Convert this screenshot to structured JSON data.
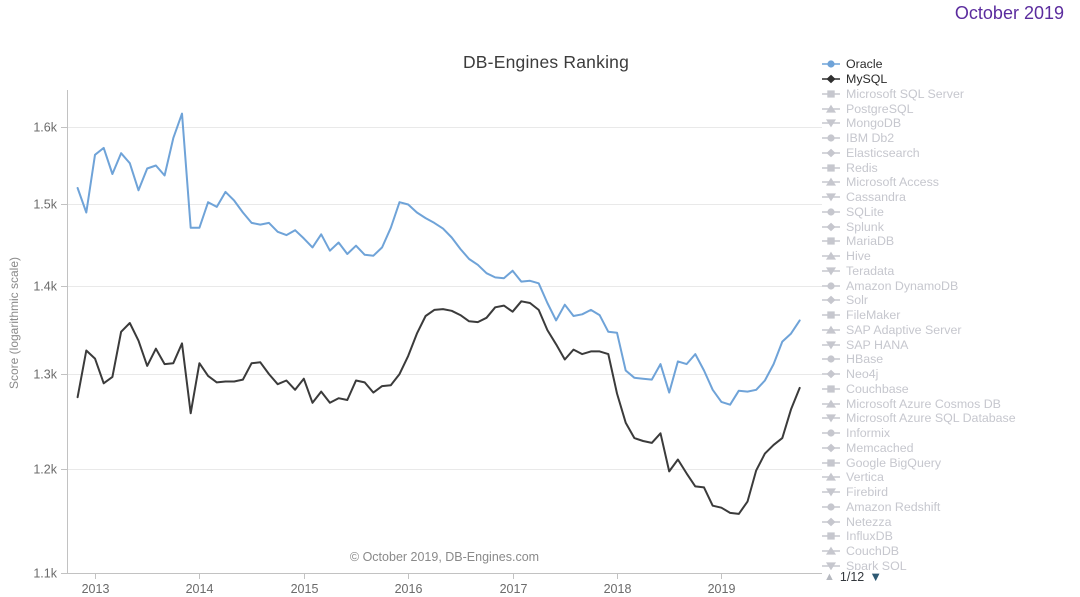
{
  "header": {
    "period_label": "October 2019"
  },
  "chart": {
    "copyright": "© October 2019, DB-Engines.com"
  },
  "chart_data": {
    "type": "line",
    "title": "DB-Engines Ranking",
    "ylabel": "Score (logarithmic scale)",
    "y_scale": "log",
    "ylim": [
      1100,
      1650
    ],
    "grid": "horizontal",
    "y_tick_labels": [
      "1.1k",
      "1.2k",
      "1.3k",
      "1.4k",
      "1.5k",
      "1.6k"
    ],
    "y_tick_values": [
      1100,
      1200,
      1300,
      1400,
      1500,
      1600
    ],
    "x_tick_labels": [
      "2013",
      "2014",
      "2015",
      "2016",
      "2017",
      "2018",
      "2019"
    ],
    "x_start": "2012-11",
    "x_end": "2019-10",
    "x_frequency": "monthly",
    "series": [
      {
        "name": "Oracle",
        "color": "#6fa3d8",
        "values": [
          1520,
          1489,
          1563,
          1572,
          1538,
          1565,
          1552,
          1517,
          1545,
          1549,
          1536,
          1585,
          1618,
          1470,
          1470,
          1502,
          1496,
          1515,
          1504,
          1489,
          1476,
          1474,
          1476,
          1465,
          1461,
          1467,
          1457,
          1446,
          1462,
          1442,
          1452,
          1438,
          1448,
          1437,
          1436,
          1446,
          1470,
          1502,
          1499,
          1489,
          1482,
          1476,
          1469,
          1458,
          1444,
          1432,
          1425,
          1415,
          1410,
          1409,
          1418,
          1405,
          1406,
          1403,
          1380,
          1360,
          1378,
          1365,
          1367,
          1372,
          1366,
          1347,
          1346,
          1304,
          1296,
          1295,
          1294,
          1311,
          1280,
          1314,
          1311,
          1322,
          1304,
          1283,
          1270,
          1267,
          1282,
          1281,
          1283,
          1293,
          1311,
          1336,
          1345,
          1360
        ]
      },
      {
        "name": "MySQL",
        "color": "#3b3b3b",
        "values": [
          1275,
          1326,
          1317,
          1290,
          1297,
          1347,
          1357,
          1337,
          1309,
          1328,
          1311,
          1312,
          1334,
          1258,
          1312,
          1298,
          1291,
          1292,
          1292,
          1294,
          1312,
          1313,
          1300,
          1289,
          1293,
          1283,
          1295,
          1269,
          1281,
          1269,
          1274,
          1272,
          1293,
          1291,
          1280,
          1287,
          1288,
          1300,
          1320,
          1345,
          1365,
          1372,
          1373,
          1371,
          1366,
          1359,
          1358,
          1363,
          1375,
          1377,
          1370,
          1382,
          1380,
          1372,
          1349,
          1333,
          1316,
          1327,
          1322,
          1325,
          1325,
          1322,
          1279,
          1248,
          1232,
          1229,
          1227,
          1237,
          1198,
          1210,
          1196,
          1183,
          1182,
          1164,
          1162,
          1157,
          1156,
          1168,
          1199,
          1216,
          1225,
          1232,
          1262,
          1285
        ]
      }
    ]
  },
  "legend": {
    "inactive_color": "#c6c7ce",
    "items": [
      {
        "label": "Oracle",
        "shape": "circle",
        "active": true,
        "color": "#6fa3d8"
      },
      {
        "label": "MySQL",
        "shape": "diamond",
        "active": true,
        "color": "#2f2f2f"
      },
      {
        "label": "Microsoft SQL Server",
        "shape": "square",
        "active": false
      },
      {
        "label": "PostgreSQL",
        "shape": "triangle-up",
        "active": false
      },
      {
        "label": "MongoDB",
        "shape": "triangle-down",
        "active": false
      },
      {
        "label": "IBM Db2",
        "shape": "circle",
        "active": false
      },
      {
        "label": "Elasticsearch",
        "shape": "diamond",
        "active": false
      },
      {
        "label": "Redis",
        "shape": "square",
        "active": false
      },
      {
        "label": "Microsoft Access",
        "shape": "triangle-up",
        "active": false
      },
      {
        "label": "Cassandra",
        "shape": "triangle-down",
        "active": false
      },
      {
        "label": "SQLite",
        "shape": "circle",
        "active": false
      },
      {
        "label": "Splunk",
        "shape": "diamond",
        "active": false
      },
      {
        "label": "MariaDB",
        "shape": "square",
        "active": false
      },
      {
        "label": "Hive",
        "shape": "triangle-up",
        "active": false
      },
      {
        "label": "Teradata",
        "shape": "triangle-down",
        "active": false
      },
      {
        "label": "Amazon DynamoDB",
        "shape": "circle",
        "active": false
      },
      {
        "label": "Solr",
        "shape": "diamond",
        "active": false
      },
      {
        "label": "FileMaker",
        "shape": "square",
        "active": false
      },
      {
        "label": "SAP Adaptive Server",
        "shape": "triangle-up",
        "active": false
      },
      {
        "label": "SAP HANA",
        "shape": "triangle-down",
        "active": false
      },
      {
        "label": "HBase",
        "shape": "circle",
        "active": false
      },
      {
        "label": "Neo4j",
        "shape": "diamond",
        "active": false
      },
      {
        "label": "Couchbase",
        "shape": "square",
        "active": false
      },
      {
        "label": "Microsoft Azure Cosmos DB",
        "shape": "triangle-up",
        "active": false
      },
      {
        "label": "Microsoft Azure SQL Database",
        "shape": "triangle-down",
        "active": false
      },
      {
        "label": "Informix",
        "shape": "circle",
        "active": false
      },
      {
        "label": "Memcached",
        "shape": "diamond",
        "active": false
      },
      {
        "label": "Google BigQuery",
        "shape": "square",
        "active": false
      },
      {
        "label": "Vertica",
        "shape": "triangle-up",
        "active": false
      },
      {
        "label": "Firebird",
        "shape": "triangle-down",
        "active": false
      },
      {
        "label": "Amazon Redshift",
        "shape": "circle",
        "active": false
      },
      {
        "label": "Netezza",
        "shape": "diamond",
        "active": false
      },
      {
        "label": "InfluxDB",
        "shape": "square",
        "active": false
      },
      {
        "label": "CouchDB",
        "shape": "triangle-up",
        "active": false
      },
      {
        "label": "Spark SQL",
        "shape": "triangle-down",
        "active": false
      }
    ],
    "pagination": {
      "up_icon": "▲",
      "label": "1/12",
      "down_icon": "▼"
    }
  },
  "colors": {
    "period_label": "#5b2c9e",
    "grid": "#e9e9e9",
    "axis": "#c2c2c2",
    "tick_text": "#6b6b6b",
    "pagination_down": "#2e5973",
    "pagination_up": "#b6b9c0"
  }
}
